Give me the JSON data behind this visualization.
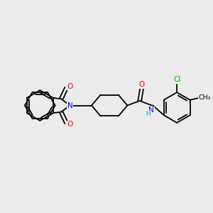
{
  "background_color": "#ebebeb",
  "atom_colors": {
    "C": "#000000",
    "N": "#0000ff",
    "O": "#ff0000",
    "Cl": "#00aa00",
    "H": "#00aaaa"
  },
  "figsize": [
    3.0,
    3.0
  ],
  "dpi": 100,
  "lw": 1.3
}
